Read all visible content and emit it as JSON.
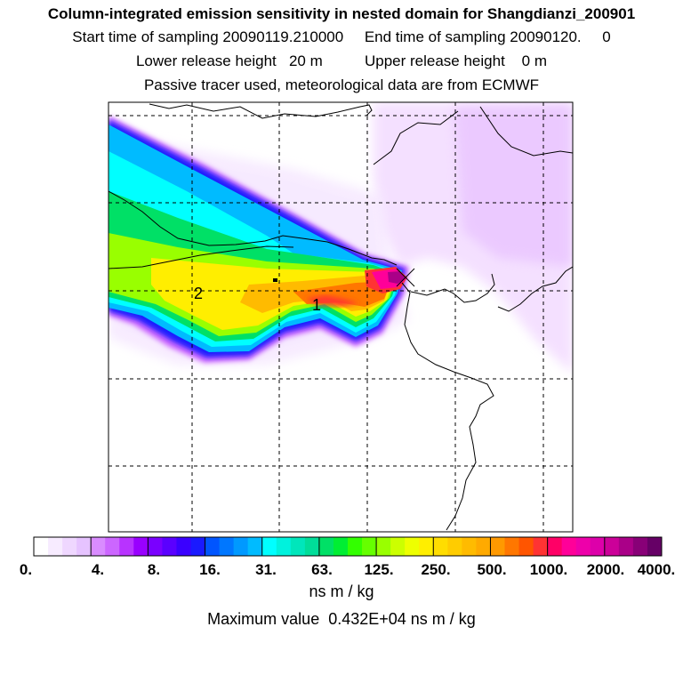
{
  "header": {
    "title": "Column-integrated emission sensitivity in nested domain for Shangdianzi_200901",
    "sampling": "Start time of sampling 20090119.210000     End time of sampling 20090120.     0",
    "release": "Lower release height   20 m          Upper release height    0 m",
    "tracer": "Passive tracer used, meteorological data are from ECMWF"
  },
  "map": {
    "cluster_labels": [
      "2",
      "1"
    ],
    "receptor_marker": "x-cross"
  },
  "colorbar": {
    "tick_labels": [
      "0.",
      "4.",
      "8.",
      "16.",
      "31.",
      "63.",
      "125.",
      "250.",
      "500.",
      "1000.",
      "2000.",
      "4000."
    ],
    "colors": [
      "#ffffff",
      "#f7ebff",
      "#efd7ff",
      "#e6c3ff",
      "#d98cff",
      "#cc66ff",
      "#b833ff",
      "#9900ff",
      "#7a00ff",
      "#5a00ff",
      "#3a00ff",
      "#1a1aff",
      "#0055ff",
      "#0077ff",
      "#0099ff",
      "#00bbff",
      "#00ffff",
      "#00f2dd",
      "#00e6bb",
      "#00dd99",
      "#00e066",
      "#00ee33",
      "#33ff00",
      "#66ff00",
      "#99ff00",
      "#ccff00",
      "#eeff00",
      "#ffee00",
      "#ffdd00",
      "#ffcc00",
      "#ffbb00",
      "#ffaa00",
      "#ff9900",
      "#ff7700",
      "#ff5500",
      "#ff3333",
      "#ff0066",
      "#ff0099",
      "#ee00aa",
      "#dd00aa",
      "#cc0099",
      "#aa0088",
      "#880077",
      "#660066"
    ]
  },
  "footer": {
    "units": "ns m / kg",
    "max_value": "Maximum value  0.432E+04 ns m / kg"
  }
}
